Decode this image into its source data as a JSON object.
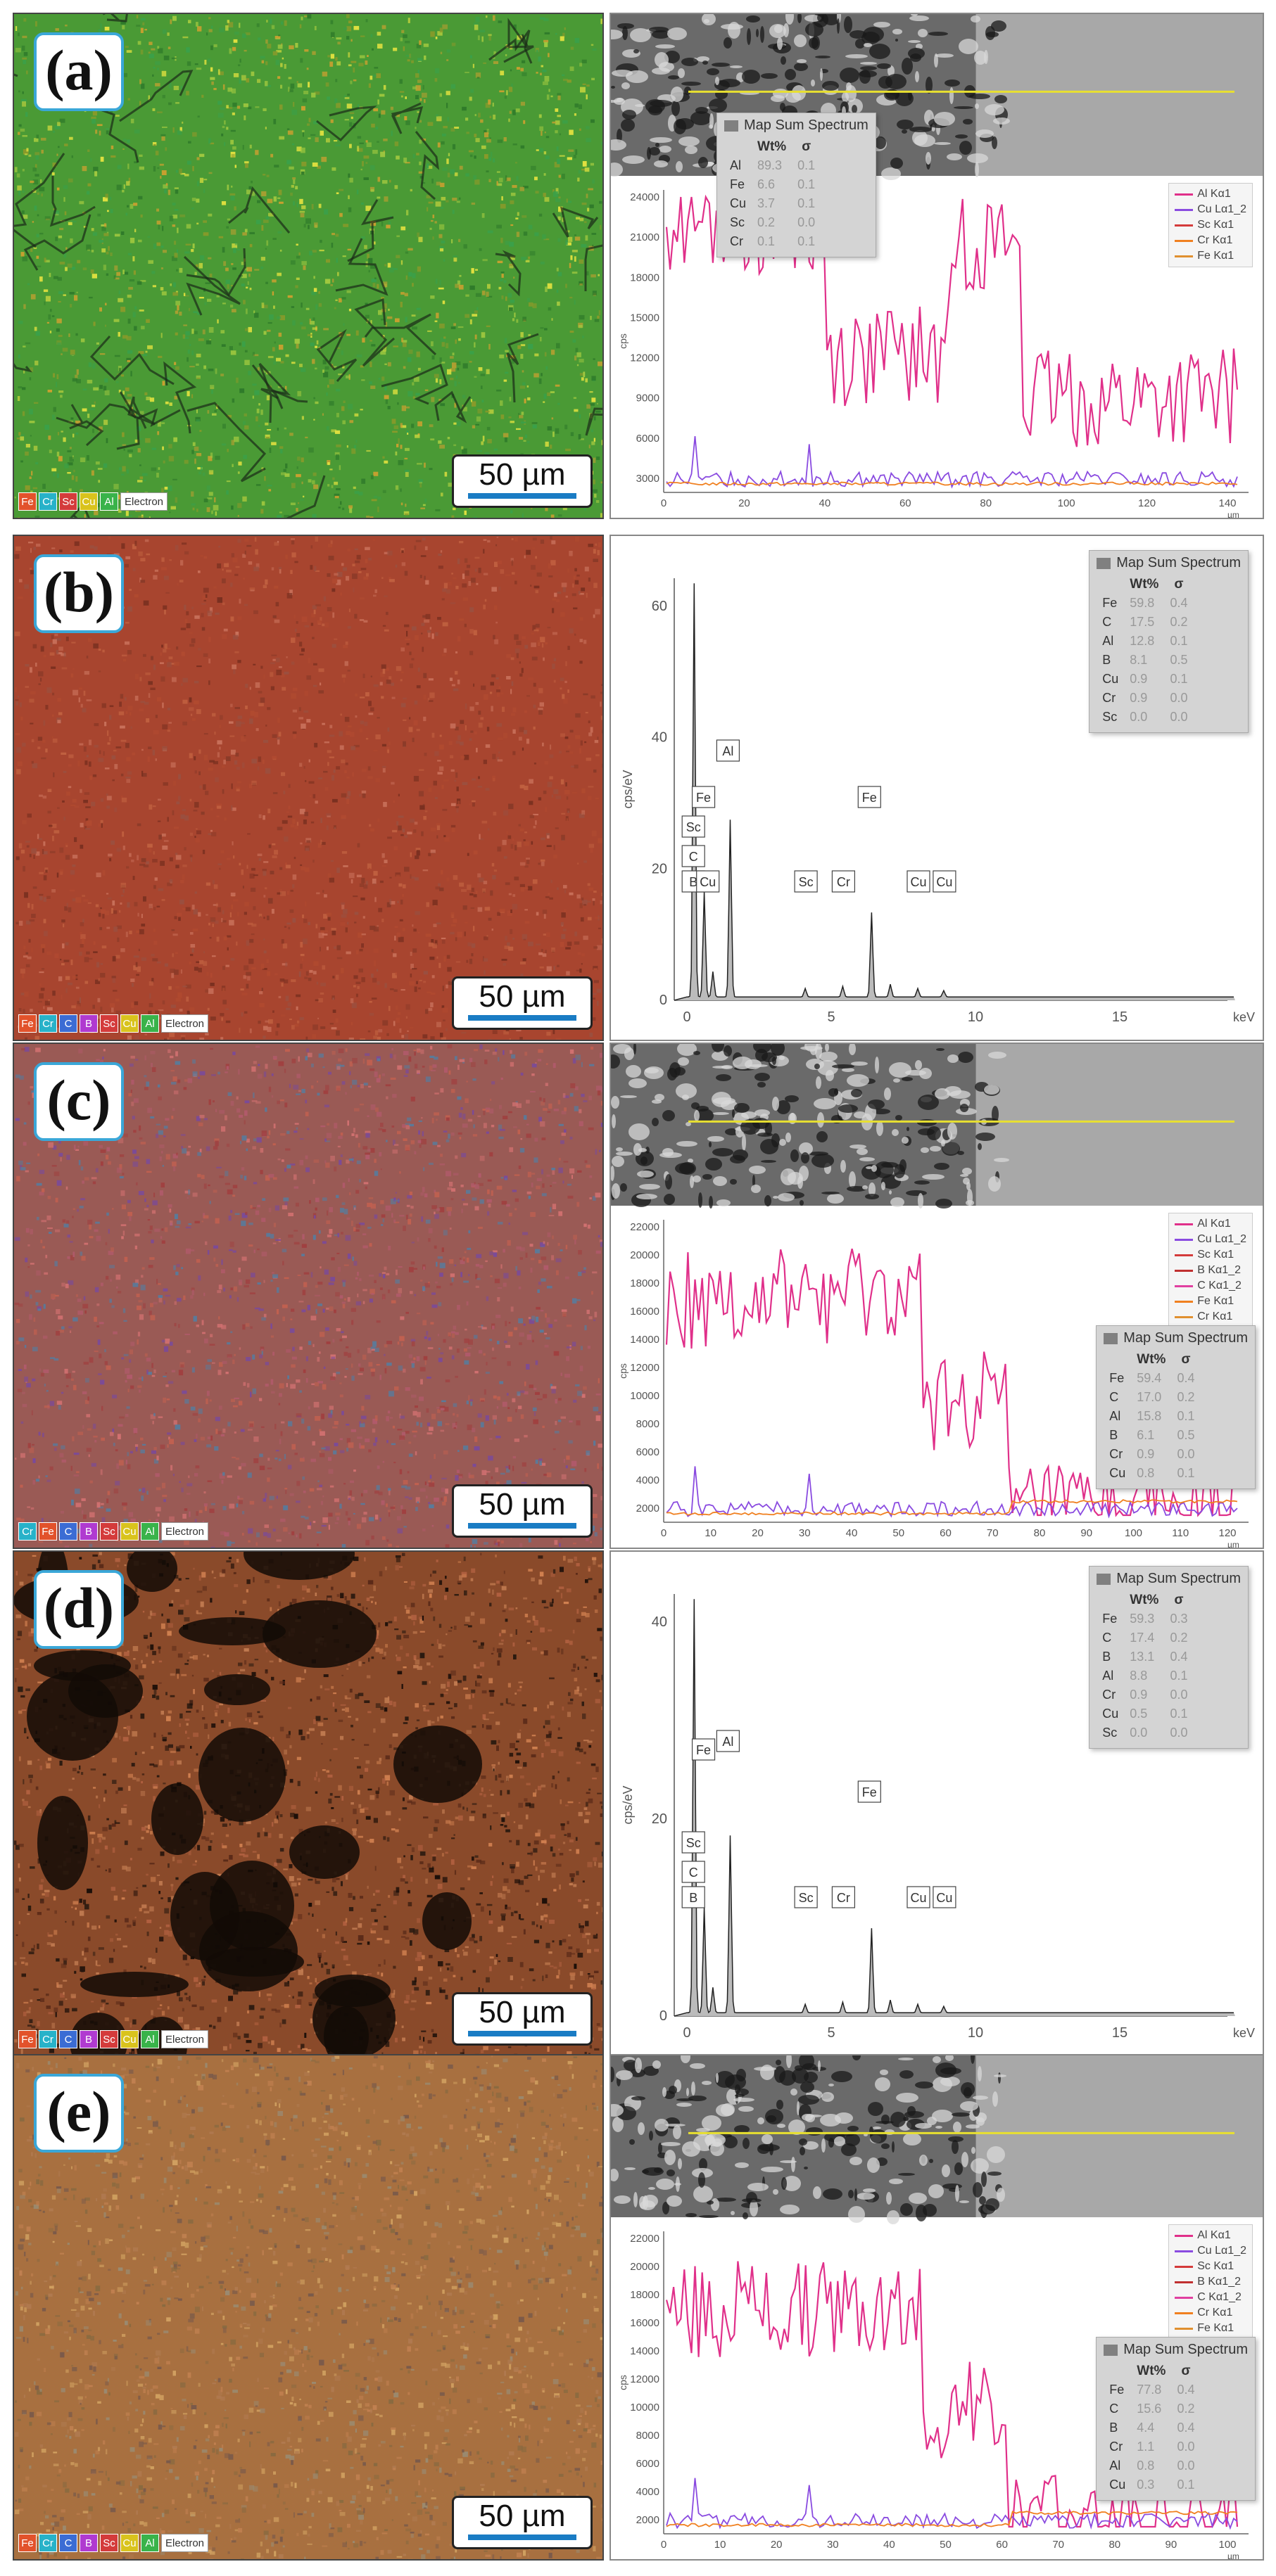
{
  "panels": [
    {
      "id": "a",
      "label": "(a)",
      "scale": "50 µm",
      "legend": [
        [
          "Fe",
          "#e2522b"
        ],
        [
          "Cr",
          "#27b2c9"
        ],
        [
          "Sc",
          "#d43b3b"
        ],
        [
          "Cu",
          "#d9c31d"
        ],
        [
          "Al",
          "#39b34a"
        ]
      ],
      "electron": "Electron",
      "type": "line",
      "y_ticks": [
        "24000",
        "21000",
        "18000",
        "15000",
        "12000",
        "9000",
        "6000",
        "3000"
      ],
      "x_ticks": [
        "0",
        "20",
        "40",
        "60",
        "80",
        "100",
        "120",
        "140"
      ],
      "y_label": "cps",
      "x_unit": "µm",
      "series_legend": [
        [
          "Al Kα1",
          "#e0308a"
        ],
        [
          "Cu Lα1_2",
          "#8a4be0"
        ],
        [
          "Sc Kα1",
          "#d43b3b"
        ],
        [
          "Cr Kα1",
          "#f08020"
        ],
        [
          "Fe Kα1",
          "#e09030"
        ]
      ],
      "summary": {
        "title": "Map Sum Spectrum",
        "col1": "Wt%",
        "col2": "σ",
        "rows": [
          [
            "Al",
            "89.3",
            "0.1"
          ],
          [
            "Fe",
            "6.6",
            "0.1"
          ],
          [
            "Cu",
            "3.7",
            "0.1"
          ],
          [
            "Sc",
            "0.2",
            "0.0"
          ],
          [
            "Cr",
            "0.1",
            "0.1"
          ]
        ]
      }
    },
    {
      "id": "b",
      "label": "(b)",
      "scale": "50 µm",
      "legend": [
        [
          "Fe",
          "#e2522b"
        ],
        [
          "Cr",
          "#27b2c9"
        ],
        [
          "C",
          "#3b6cd4"
        ],
        [
          "B",
          "#b03ad0"
        ],
        [
          "Sc",
          "#d43b3b"
        ],
        [
          "Cu",
          "#d9c31d"
        ],
        [
          "Al",
          "#39b34a"
        ]
      ],
      "electron": "Electron",
      "type": "spectrum",
      "y_ticks": [
        "60",
        "40",
        "20",
        "0"
      ],
      "x_ticks": [
        "0",
        "5",
        "10",
        "15"
      ],
      "y_label": "cps/eV",
      "x_unit": "keV",
      "peaks": [
        "Sc",
        "C",
        "B",
        "Cu",
        "Fe",
        "Al",
        "Sc",
        "Cr",
        "Fe",
        "Cu",
        "Cu"
      ],
      "summary": {
        "title": "Map Sum Spectrum",
        "col1": "Wt%",
        "col2": "σ",
        "rows": [
          [
            "Fe",
            "59.8",
            "0.4"
          ],
          [
            "C",
            "17.5",
            "0.2"
          ],
          [
            "Al",
            "12.8",
            "0.1"
          ],
          [
            "B",
            "8.1",
            "0.5"
          ],
          [
            "Cu",
            "0.9",
            "0.1"
          ],
          [
            "Cr",
            "0.9",
            "0.0"
          ],
          [
            "Sc",
            "0.0",
            "0.0"
          ]
        ]
      }
    },
    {
      "id": "c",
      "label": "(c)",
      "scale": "50 µm",
      "legend": [
        [
          "Cr",
          "#27b2c9"
        ],
        [
          "Fe",
          "#e2522b"
        ],
        [
          "C",
          "#3b6cd4"
        ],
        [
          "B",
          "#b03ad0"
        ],
        [
          "Sc",
          "#d43b3b"
        ],
        [
          "Cu",
          "#d9c31d"
        ],
        [
          "Al",
          "#39b34a"
        ]
      ],
      "electron": "Electron",
      "type": "line",
      "y_ticks": [
        "22000",
        "20000",
        "18000",
        "16000",
        "14000",
        "12000",
        "10000",
        "8000",
        "6000",
        "4000",
        "2000"
      ],
      "x_ticks": [
        "0",
        "10",
        "20",
        "30",
        "40",
        "50",
        "60",
        "70",
        "80",
        "90",
        "100",
        "110",
        "120"
      ],
      "y_label": "cps",
      "x_unit": "µm",
      "series_legend": [
        [
          "Al Kα1",
          "#e0308a"
        ],
        [
          "Cu Lα1_2",
          "#8a4be0"
        ],
        [
          "Sc Kα1",
          "#d43b3b"
        ],
        [
          "B Kα1_2",
          "#c03030"
        ],
        [
          "C Kα1_2",
          "#e040a0"
        ],
        [
          "Fe Kα1",
          "#f08020"
        ],
        [
          "Cr Kα1",
          "#e09030"
        ]
      ],
      "summary": {
        "title": "Map Sum Spectrum",
        "col1": "Wt%",
        "col2": "σ",
        "rows": [
          [
            "Fe",
            "59.4",
            "0.4"
          ],
          [
            "C",
            "17.0",
            "0.2"
          ],
          [
            "Al",
            "15.8",
            "0.1"
          ],
          [
            "B",
            "6.1",
            "0.5"
          ],
          [
            "Cr",
            "0.9",
            "0.0"
          ],
          [
            "Cu",
            "0.8",
            "0.1"
          ]
        ]
      }
    },
    {
      "id": "d",
      "label": "(d)",
      "scale": "50 µm",
      "legend": [
        [
          "Fe",
          "#e2522b"
        ],
        [
          "Cr",
          "#27b2c9"
        ],
        [
          "C",
          "#3b6cd4"
        ],
        [
          "B",
          "#b03ad0"
        ],
        [
          "Sc",
          "#d43b3b"
        ],
        [
          "Cu",
          "#d9c31d"
        ],
        [
          "Al",
          "#39b34a"
        ]
      ],
      "electron": "Electron",
      "type": "spectrum",
      "y_ticks": [
        "40",
        "20",
        "0"
      ],
      "x_ticks": [
        "0",
        "5",
        "10",
        "15"
      ],
      "y_label": "cps/eV",
      "x_unit": "keV",
      "peaks": [
        "Sc",
        "C",
        "B",
        "Fe",
        "Al",
        "Sc",
        "Cr",
        "Fe",
        "Cu",
        "Cu"
      ],
      "summary": {
        "title": "Map Sum Spectrum",
        "col1": "Wt%",
        "col2": "σ",
        "rows": [
          [
            "Fe",
            "59.3",
            "0.3"
          ],
          [
            "C",
            "17.4",
            "0.2"
          ],
          [
            "B",
            "13.1",
            "0.4"
          ],
          [
            "Al",
            "8.8",
            "0.1"
          ],
          [
            "Cr",
            "0.9",
            "0.0"
          ],
          [
            "Cu",
            "0.5",
            "0.1"
          ],
          [
            "Sc",
            "0.0",
            "0.0"
          ]
        ]
      }
    },
    {
      "id": "e",
      "label": "(e)",
      "scale": "50 µm",
      "legend": [
        [
          "Fe",
          "#e2522b"
        ],
        [
          "Cr",
          "#27b2c9"
        ],
        [
          "C",
          "#3b6cd4"
        ],
        [
          "B",
          "#b03ad0"
        ],
        [
          "Sc",
          "#d43b3b"
        ],
        [
          "Cu",
          "#d9c31d"
        ],
        [
          "Al",
          "#39b34a"
        ]
      ],
      "electron": "Electron",
      "type": "line",
      "y_ticks": [
        "22000",
        "20000",
        "18000",
        "16000",
        "14000",
        "12000",
        "10000",
        "8000",
        "6000",
        "4000",
        "2000"
      ],
      "x_ticks": [
        "0",
        "10",
        "20",
        "30",
        "40",
        "50",
        "60",
        "70",
        "80",
        "90",
        "100"
      ],
      "y_label": "cps",
      "x_unit": "µm",
      "series_legend": [
        [
          "Al Kα1",
          "#e0308a"
        ],
        [
          "Cu Lα1_2",
          "#8a4be0"
        ],
        [
          "Sc Kα1",
          "#d43b3b"
        ],
        [
          "B Kα1_2",
          "#c03030"
        ],
        [
          "C Kα1_2",
          "#e040a0"
        ],
        [
          "Cr Kα1",
          "#f08020"
        ],
        [
          "Fe Kα1",
          "#e09030"
        ]
      ],
      "summary": {
        "title": "Map Sum Spectrum",
        "col1": "Wt%",
        "col2": "σ",
        "rows": [
          [
            "Fe",
            "77.8",
            "0.4"
          ],
          [
            "C",
            "15.6",
            "0.2"
          ],
          [
            "B",
            "4.4",
            "0.4"
          ],
          [
            "Cr",
            "1.1",
            "0.0"
          ],
          [
            "Al",
            "0.8",
            "0.0"
          ],
          [
            "Cu",
            "0.3",
            "0.1"
          ]
        ]
      }
    }
  ],
  "colors": {
    "map_a": "#4a9a35",
    "map_b": "#a8452f",
    "map_c": "#9a5a55",
    "map_d": "#8a4a2a",
    "map_e": "#a87040",
    "al_line": "#e0308a",
    "cu_line": "#8a4be0",
    "fe_line": "#f08020"
  }
}
